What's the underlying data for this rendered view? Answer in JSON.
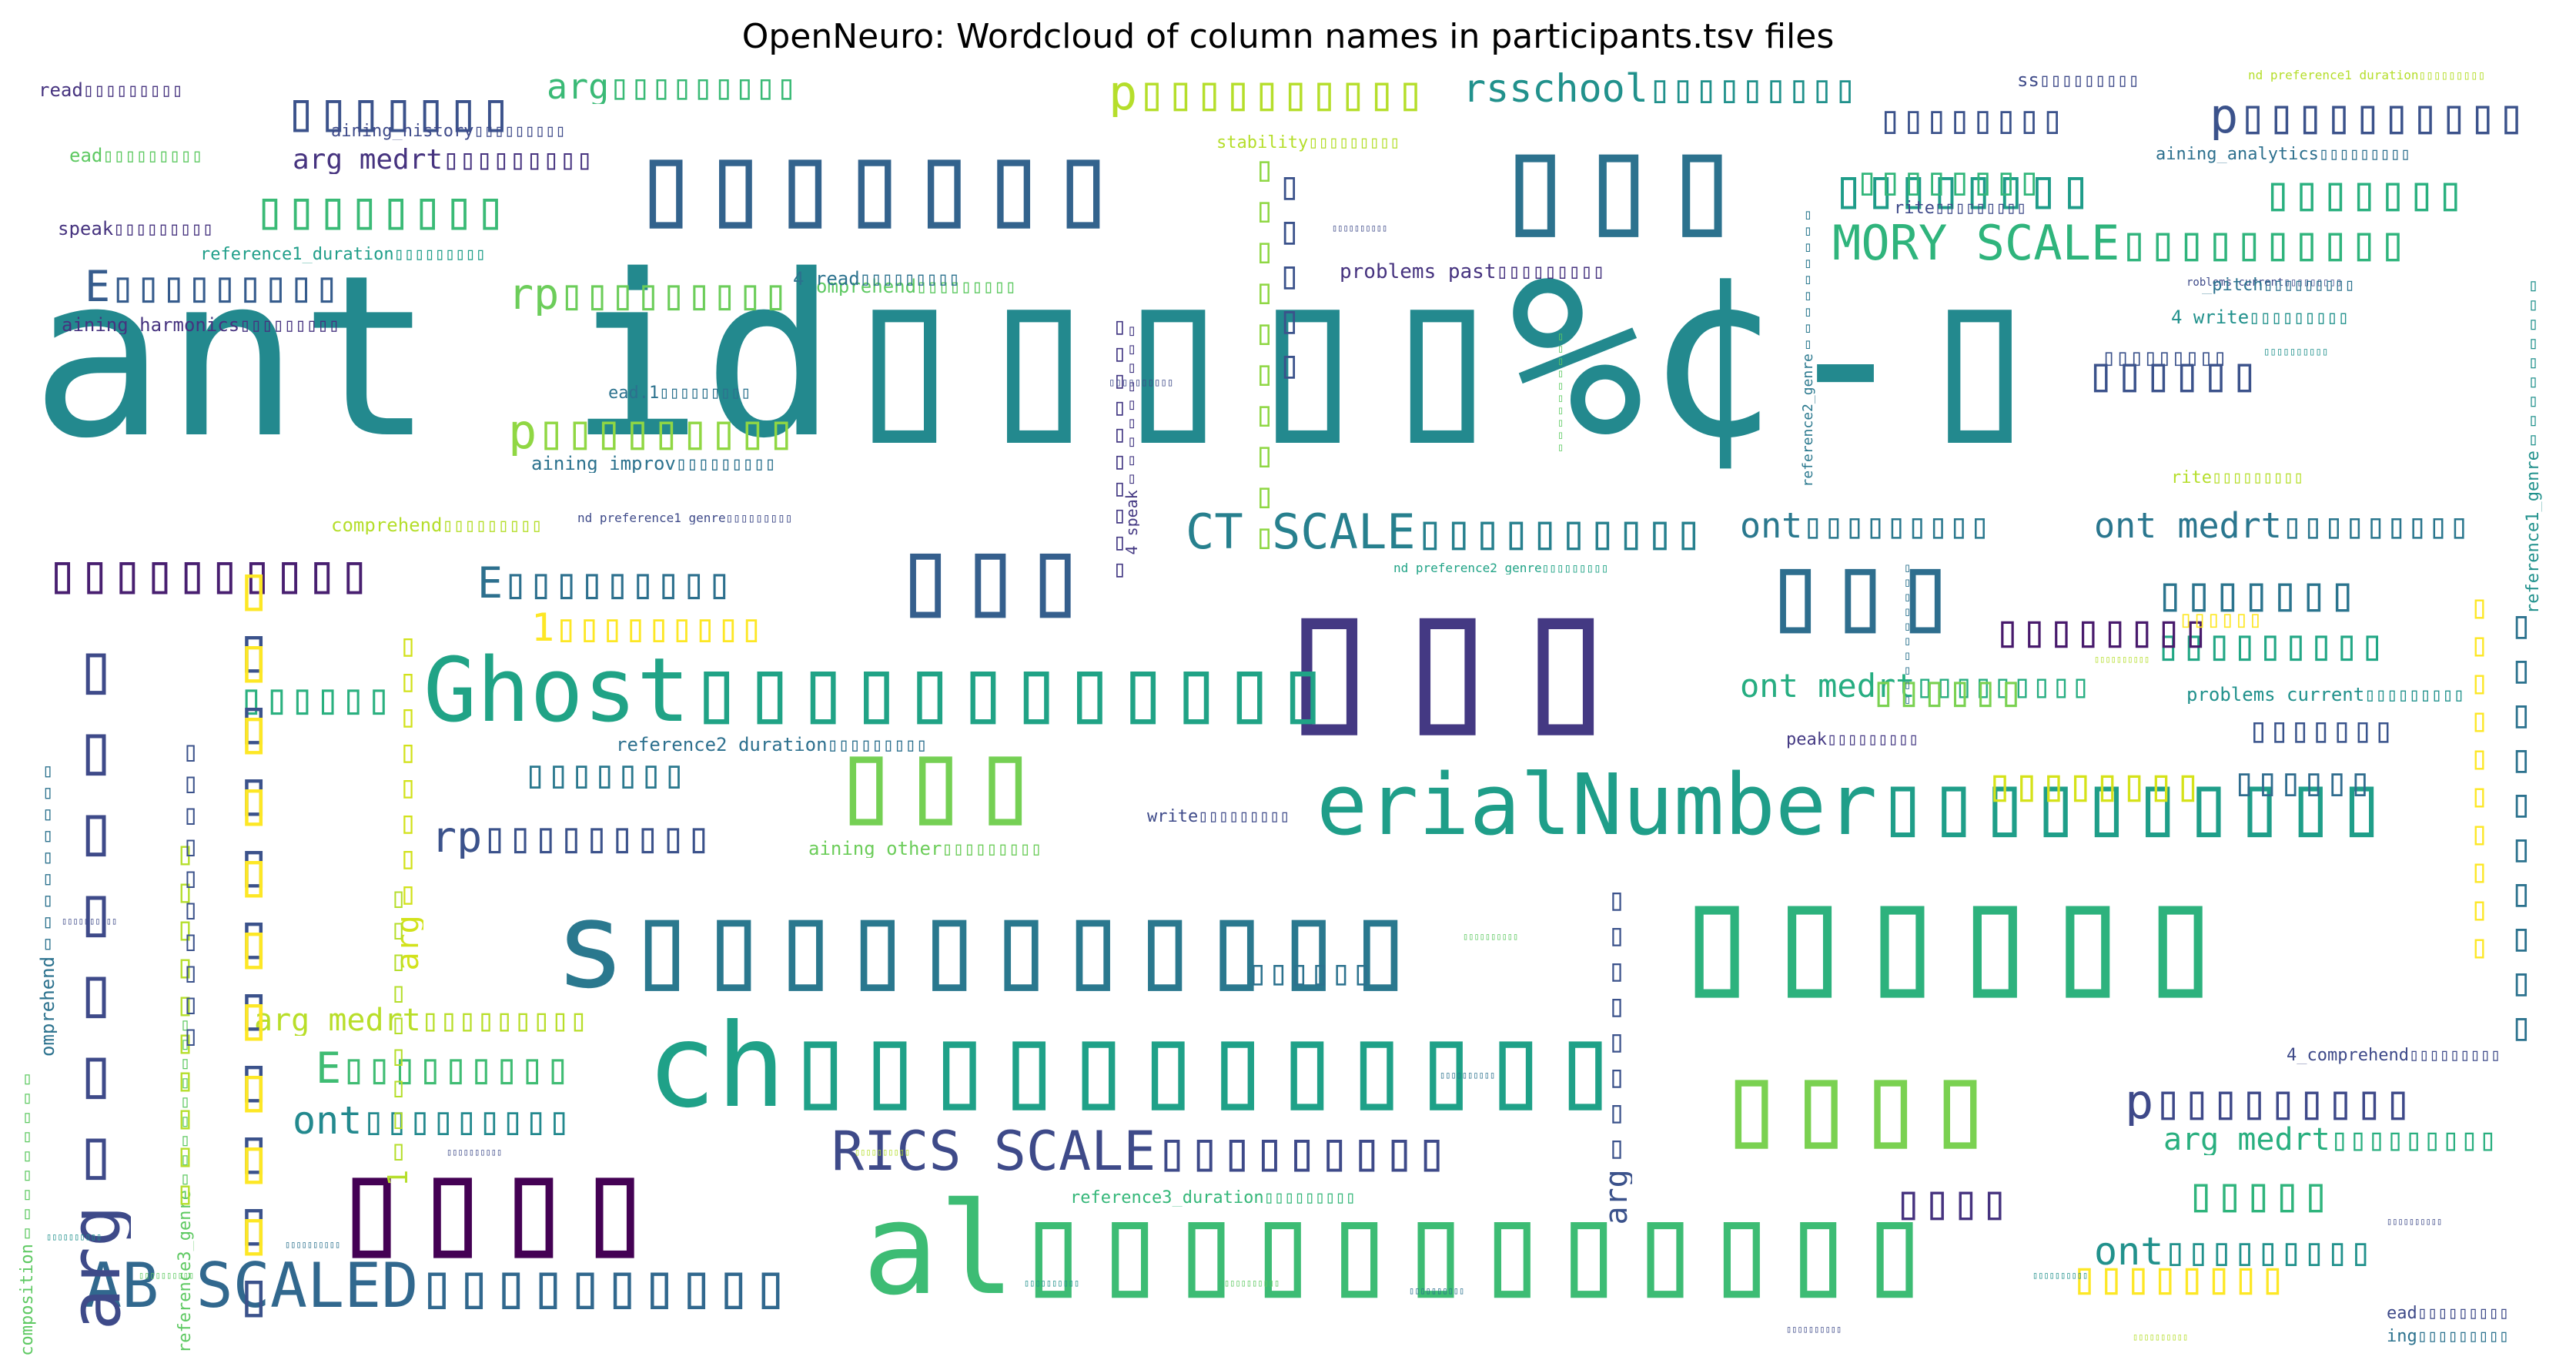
{
  "title": "OpenNeuro: Wordcloud of column names in participants.tsv files",
  "words": [
    {
      "text": "ant_id▯▯▯▯▯%¢-▯",
      "color": "#23898e"
    },
    {
      "text": "▯▯▯",
      "color": "#443983"
    },
    {
      "text": "▯▯▯▯▯▯▯",
      "color": "#33638d"
    },
    {
      "text": "▯▯▯",
      "color": "#2c728e"
    },
    {
      "text": "▯▯▯▯▯▯",
      "color": "#2db27d"
    },
    {
      "text": "al▯▯▯▯▯▯▯▯▯▯▯▯",
      "color": "#3dbc74"
    },
    {
      "text": "ch▯▯▯▯▯▯▯▯▯▯▯▯",
      "color": "#1fa188"
    },
    {
      "text": "s▯▯▯▯▯▯▯▯▯▯▯",
      "color": "#2a788e"
    },
    {
      "text": "erialNumber▯▯▯▯▯▯▯▯▯▯",
      "color": "#1f9e89"
    },
    {
      "text": "Ghost▯▯▯▯▯▯▯▯▯▯▯▯",
      "color": "#20a386"
    },
    {
      "text": "▯▯▯▯",
      "color": "#440154"
    },
    {
      "text": "▯▯▯",
      "color": "#75d054"
    },
    {
      "text": "▯▯▯▯",
      "color": "#7ad151"
    },
    {
      "text": "▯▯▯",
      "color": "#355f8d"
    },
    {
      "text": "▯▯▯",
      "color": "#2e6e8e"
    },
    {
      "text": "AB_SCALED▯▯▯▯▯▯▯▯▯▯",
      "color": "#31688e"
    },
    {
      "text": "RICS_SCALE▯▯▯▯▯▯▯▯▯",
      "color": "#3e4a89"
    },
    {
      "text": "CT_SCALE▯▯▯▯▯▯▯▯▯▯",
      "color": "#27808e"
    },
    {
      "text": "MORY_SCALE▯▯▯▯▯▯▯▯▯▯",
      "color": "#2fb47c"
    },
    {
      "text": "▯▯▯▯▯▯▯▯",
      "color": "#3aba76"
    },
    {
      "text": "▯▯▯▯▯▯▯",
      "color": "#3b528b"
    },
    {
      "text": "▯▯▯▯▯▯▯▯▯▯",
      "color": "#481f70"
    },
    {
      "text": "▯▯▯▯▯▯▯▯",
      "color": "#1e9c89"
    },
    {
      "text": "p▯▯▯▯▯▯▯▯▯▯",
      "color": "#b5de2b"
    },
    {
      "text": "rsschool▯▯▯▯▯▯▯▯▯",
      "color": "#21918c"
    },
    {
      "text": "p▯▯▯▯▯▯▯▯▯▯",
      "color": "#3b528b"
    },
    {
      "text": "p▯▯▯▯▯▯▯▯▯",
      "color": "#3e4989"
    },
    {
      "text": "p▯▯▯▯▯▯▯▯▯",
      "color": "#90d743"
    },
    {
      "text": "E▯▯▯▯▯▯▯▯▯",
      "color": "#365c8d"
    },
    {
      "text": "E▯▯▯▯▯▯▯▯▯",
      "color": "#2d708e"
    },
    {
      "text": "E▯▯▯▯▯▯▯▯▯",
      "color": "#3fbc73"
    },
    {
      "text": "rp▯▯▯▯▯▯▯▯▯",
      "color": "#6ccd5a"
    },
    {
      "text": "rp▯▯▯▯▯▯▯▯▯",
      "color": "#3b528b"
    },
    {
      "text": "ont_medrt▯▯▯▯▯▯▯▯▯",
      "color": "#2a768e"
    },
    {
      "text": "ont_medrt▯▯▯▯▯▯▯▯▯",
      "color": "#26ad81"
    },
    {
      "text": "ont▯▯▯▯▯▯▯▯▯",
      "color": "#2a788e"
    },
    {
      "text": "ont▯▯▯▯▯▯▯▯▯",
      "color": "#23898e"
    },
    {
      "text": "ont▯▯▯▯▯▯▯▯▯",
      "color": "#21918c"
    },
    {
      "text": "arg▯▯▯▯▯▯▯▯▯",
      "color": "#3aba76"
    },
    {
      "text": "arg_medrt▯▯▯▯▯▯▯▯▯",
      "color": "#29af7f"
    },
    {
      "text": "arg_medrt▯▯▯▯▯▯▯▯▯",
      "color": "#b8de29"
    },
    {
      "text": "arg_medrt▯▯▯▯▯▯▯▯▯",
      "color": "#46337f"
    },
    {
      "text": "1▯▯▯▯▯▯▯▯▯",
      "color": "#fde725"
    },
    {
      "text": "aining_history▯▯▯▯▯▯▯▯▯",
      "color": "#3e4a89"
    },
    {
      "text": "aining_harmonics▯▯▯▯▯▯▯▯▯",
      "color": "#46337f"
    },
    {
      "text": "aining_improv▯▯▯▯▯▯▯▯▯",
      "color": "#2c728e"
    },
    {
      "text": "aining_analytics▯▯▯▯▯▯▯▯▯",
      "color": "#2d708e"
    },
    {
      "text": "aining_other▯▯▯▯▯▯▯▯▯",
      "color": "#6ccd5a"
    },
    {
      "text": "aining_composition▯▯▯▯▯▯▯▯▯",
      "color": "#5ec962"
    },
    {
      "text": "reference1_duration▯▯▯▯▯▯▯▯▯",
      "color": "#1f9e89"
    },
    {
      "text": "reference2_duration▯▯▯▯▯▯▯▯▯",
      "color": "#2d708e"
    },
    {
      "text": "reference3_duration▯▯▯▯▯▯▯▯▯",
      "color": "#35b779"
    },
    {
      "text": "nd_preference1_duration▯▯▯▯▯▯▯▯▯",
      "color": "#b5de2b"
    },
    {
      "text": "nd_preference1_genre▯▯▯▯▯▯▯▯▯",
      "color": "#3e4a89"
    },
    {
      "text": "nd_preference2_genre▯▯▯▯▯▯▯▯▯",
      "color": "#20a386"
    },
    {
      "text": "reference2_genre▯▯▯▯▯▯▯▯▯",
      "color": "#2a788e"
    },
    {
      "text": "reference1_genre▯▯▯▯▯▯▯▯▯",
      "color": "#21918c"
    },
    {
      "text": "reference3_genre▯▯▯▯▯▯▯▯▯",
      "color": "#5ec962"
    },
    {
      "text": "problems_past▯▯▯▯▯▯▯▯▯",
      "color": "#46337f"
    },
    {
      "text": "problems_current▯▯▯▯▯▯▯▯▯",
      "color": "#21918c"
    },
    {
      "text": "roblems_current▯▯▯▯▯▯▯▯▯",
      "color": "#3e4a89"
    },
    {
      "text": "comprehend▯▯▯▯▯▯▯▯▯",
      "color": "#b5de2b"
    },
    {
      "text": "omprehend▯▯▯▯▯▯▯▯▯",
      "color": "#2c728e"
    },
    {
      "text": "omprehend▯▯▯▯▯▯▯▯▯",
      "color": "#5ec962"
    },
    {
      "text": "4_comprehend▯▯▯▯▯▯▯▯▯",
      "color": "#3e4a89"
    },
    {
      "text": "4_read▯▯▯▯▯▯▯▯▯",
      "color": "#2c728e"
    },
    {
      "text": "4_write▯▯▯▯▯▯▯▯▯",
      "color": "#21918c"
    },
    {
      "text": "4_speak▯▯▯▯▯▯▯▯▯",
      "color": "#443983"
    },
    {
      "text": "read▯▯▯▯▯▯▯▯▯",
      "color": "#46337f"
    },
    {
      "text": "ead▯▯▯▯▯▯▯▯▯",
      "color": "#5ec962"
    },
    {
      "text": "ead▯▯▯▯▯▯▯▯▯",
      "color": "#3e4a89"
    },
    {
      "text": "ead.1▯▯▯▯▯▯▯▯▯",
      "color": "#2c728e"
    },
    {
      "text": "speak▯▯▯▯▯▯▯▯▯",
      "color": "#46337f"
    },
    {
      "text": "peak▯▯▯▯▯▯▯▯▯",
      "color": "#443983"
    },
    {
      "text": "write▯▯▯▯▯▯▯▯▯",
      "color": "#3e4a89"
    },
    {
      "text": "rite▯▯▯▯▯▯▯▯▯",
      "color": "#3e4a89"
    },
    {
      "text": "rite▯▯▯▯▯▯▯▯▯",
      "color": "#b5de2b"
    },
    {
      "text": "stability▯▯▯▯▯▯▯▯▯",
      "color": "#b5de2b"
    },
    {
      "text": "ss▯▯▯▯▯▯▯▯▯",
      "color": "#3e4a89"
    },
    {
      "text": "ing▯▯▯▯▯▯▯▯▯",
      "color": "#2c728e"
    },
    {
      "text": "_pitch▯▯▯▯▯▯▯▯▯",
      "color": "#2c728e"
    },
    {
      "text": "▯▯▯▯▯▯▯▯",
      "color": "#3b528b"
    },
    {
      "text": "▯▯▯▯▯▯▯",
      "color": "#2b748e"
    },
    {
      "text": "▯▯▯▯▯▯▯",
      "color": "#2ab07f"
    },
    {
      "text": "▯▯▯▯▯▯▯▯",
      "color": "#32b67a"
    },
    {
      "text": "▯▯▯▯▯▯▯▯▯",
      "color": "#22a785"
    },
    {
      "text": "▯▯▯▯▯▯",
      "color": "#3b528b"
    },
    {
      "text": "▯▯▯▯▯▯▯",
      "color": "#2a788e"
    },
    {
      "text": "▯▯▯▯▯▯▯",
      "color": "#3a548c"
    },
    {
      "text": "▯▯▯▯▯▯▯▯",
      "color": "#481a6c"
    },
    {
      "text": "▯▯▯▯▯▯",
      "color": "#fde725"
    },
    {
      "text": "▯▯▯▯▯",
      "color": "#2fb47c"
    },
    {
      "text": "▯▯▯▯▯▯▯▯",
      "color": "#d5e21a"
    },
    {
      "text": "▯▯▯▯▯▯▯▯",
      "color": "#fde725"
    },
    {
      "text": "▯▯▯▯",
      "color": "#46337f"
    },
    {
      "text": "▯▯▯▯▯▯",
      "color": "#2f6c8e"
    },
    {
      "text": "▯▯▯▯▯▯",
      "color": "#2ab07f"
    },
    {
      "text": "▯▯▯▯▯▯",
      "color": "#7ad151"
    },
    {
      "text": "▯▯▯▯▯▯▯▯▯",
      "color": "#3b528b"
    },
    {
      "text": "▯▯▯▯▯▯",
      "color": "#2c728e"
    },
    {
      "text": "▯▯▯▯▯",
      "color": "#3b528b"
    },
    {
      "text": "arg▯▯▯▯▯▯▯▯",
      "color": "#3b528b"
    },
    {
      "text": "arg▯▯▯▯▯▯▯▯",
      "color": "#d2e21b"
    },
    {
      "text": "arg▯▯▯▯▯▯▯",
      "color": "#3e4a89"
    },
    {
      "text": "▯▯▯▯▯▯▯▯▯▯",
      "color": "#3b528b"
    },
    {
      "text": "▯▯▯▯▯▯▯▯▯▯",
      "color": "#2c728e"
    },
    {
      "text": "▯▯▯▯▯▯▯▯▯▯",
      "color": "#fde725"
    },
    {
      "text": "▯▯▯▯▯▯▯▯▯▯",
      "color": "#fde725"
    },
    {
      "text": "▯▯▯▯▯▯▯▯▯▯",
      "color": "#8fd744"
    },
    {
      "text": "▯▯▯▯▯▯▯▯▯▯",
      "color": "#443983"
    },
    {
      "text": "▯▯▯▯▯▯▯▯▯▯",
      "color": "#b5de2b"
    },
    {
      "text": "▯▯▯▯▯▯▯▯▯▯",
      "color": "#3b528b"
    },
    {
      "text": "1▯▯▯▯▯▯▯▯▯",
      "color": "#b5de2b"
    },
    {
      "text": "▯▯▯▯▯▯▯▯▯▯",
      "color": "#2c728e"
    },
    {
      "text": "▯▯▯▯▯▯▯▯▯▯",
      "color": "#5ec962"
    },
    {
      "text": "▯▯▯▯▯▯▯▯▯▯",
      "color": "#3e4a89"
    },
    {
      "text": "▯▯▯▯▯▯▯▯▯▯",
      "color": "#21918c"
    },
    {
      "text": "▯▯▯▯▯▯▯▯▯▯",
      "color": "#3e4a89"
    },
    {
      "text": "▯▯▯▯▯▯▯▯▯▯",
      "color": "#b5de2b"
    },
    {
      "text": "▯▯▯▯▯▯▯▯▯▯",
      "color": "#2c728e"
    },
    {
      "text": "▯▯▯▯▯▯▯▯▯▯",
      "color": "#5ec962"
    },
    {
      "text": "▯▯▯▯▯▯▯▯▯▯",
      "color": "#3e4a89"
    },
    {
      "text": "▯▯▯▯▯▯▯▯▯▯",
      "color": "#21918c"
    },
    {
      "text": "▯▯▯▯▯▯▯▯▯▯",
      "color": "#b5de2b"
    },
    {
      "text": "▯▯▯▯▯▯▯▯▯▯",
      "color": "#3e4a89"
    },
    {
      "text": "▯▯▯▯▯▯▯▯▯▯",
      "color": "#2c728e"
    },
    {
      "text": "▯▯▯▯▯▯▯▯▯▯",
      "color": "#5ec962"
    },
    {
      "text": "▯▯▯▯▯▯▯▯▯▯",
      "color": "#21918c"
    },
    {
      "text": "▯▯▯▯▯▯▯▯▯▯",
      "color": "#b5de2b"
    },
    {
      "text": "▯▯▯▯▯▯▯▯▯▯",
      "color": "#3e4a89"
    },
    {
      "text": "▯▯▯▯▯▯▯▯▯▯",
      "color": "#2c728e"
    },
    {
      "text": "▯▯▯▯▯▯▯▯▯▯",
      "color": "#5ec962"
    },
    {
      "text": "▯▯▯▯▯▯▯▯▯▯",
      "color": "#21918c"
    },
    {
      "text": "▯▯▯▯▯▯▯▯▯▯",
      "color": "#3e4a89"
    }
  ]
}
